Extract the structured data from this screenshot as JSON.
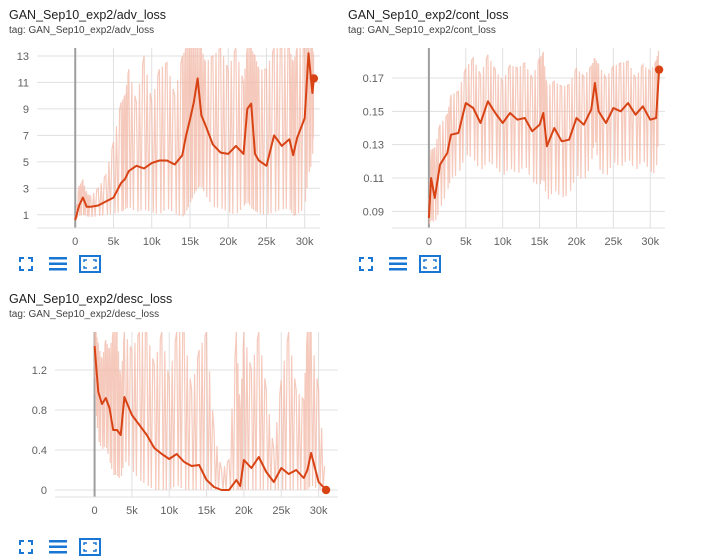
{
  "charts": [
    {
      "title": "GAN_Sep10_exp2/adv_loss",
      "tag": "tag: GAN_Sep10_exp2/adv_loss"
    },
    {
      "title": "GAN_Sep10_exp2/cont_loss",
      "tag": "tag: GAN_Sep10_exp2/cont_loss"
    },
    {
      "title": "GAN_Sep10_exp2/desc_loss",
      "tag": "tag: GAN_Sep10_exp2/desc_loss"
    }
  ],
  "toolbar_icons": [
    "fullscreen-icon",
    "data-download-icon",
    "fit-domain-icon"
  ],
  "colors": {
    "line": "#d84315",
    "raw": "#f2b7a5",
    "axis": "#9e9e9e",
    "grid": "#e0e0e0",
    "tool": "#1976d2"
  },
  "chart_data": [
    {
      "type": "line",
      "title": "GAN_Sep10_exp2/adv_loss",
      "xlim": [
        -5000,
        32000
      ],
      "ylim": [
        0,
        13.6
      ],
      "x_ticks": [
        0,
        5000,
        10000,
        15000,
        20000,
        25000,
        30000
      ],
      "x_tick_labels": [
        "0",
        "5k",
        "10k",
        "15k",
        "20k",
        "25k",
        "30k"
      ],
      "y_ticks": [
        1,
        3,
        5,
        7,
        9,
        11,
        13
      ],
      "y_tick_labels": [
        "1",
        "3",
        "5",
        "7",
        "9",
        "11",
        "13"
      ],
      "grid": true,
      "series": [
        {
          "x": [
            0,
            500,
            1000,
            1500,
            2000,
            3000,
            4000,
            5000,
            6000,
            6500,
            7000,
            8000,
            9000,
            10000,
            11000,
            12000,
            13000,
            14000,
            14500,
            15000,
            15500,
            16000,
            16500,
            17000,
            18000,
            19000,
            20000,
            21000,
            22000,
            22500,
            23000,
            23500,
            24000,
            25000,
            26000,
            27000,
            28000,
            28500,
            29000,
            30000,
            30500,
            31000,
            31200
          ],
          "y": [
            0.6,
            1.7,
            2.3,
            1.6,
            1.6,
            1.7,
            2.0,
            2.3,
            3.4,
            3.7,
            4.3,
            4.7,
            4.5,
            4.9,
            5.1,
            5.1,
            4.8,
            5.5,
            7.0,
            8.2,
            9.5,
            11.3,
            8.5,
            7.8,
            6.3,
            5.7,
            5.6,
            6.2,
            5.6,
            9.0,
            9.4,
            5.6,
            5.1,
            4.7,
            7.0,
            6.2,
            6.7,
            5.5,
            6.8,
            8.3,
            13.2,
            10.2,
            11.3
          ],
          "y_high": [
            0.9,
            3.2,
            3.6,
            2.6,
            2.4,
            3.0,
            4.0,
            6.5,
            9.5,
            10.0,
            12.0,
            9.5,
            13.0,
            9.5,
            12.0,
            12.5,
            10.0,
            13.0,
            13.6,
            13.6,
            13.6,
            13.6,
            13.6,
            12.5,
            13.0,
            13.6,
            12.0,
            13.6,
            11.0,
            13.6,
            13.6,
            13.0,
            12.0,
            12.0,
            13.6,
            13.6,
            13.6,
            12.5,
            13.6,
            13.6,
            13.6,
            13.6,
            13.0
          ],
          "y_low": [
            0.6,
            0.9,
            1.0,
            0.9,
            0.8,
            0.9,
            1.0,
            1.1,
            1.2,
            1.4,
            1.6,
            1.2,
            1.4,
            1.2,
            1.0,
            1.5,
            1.1,
            0.8,
            1.2,
            1.8,
            2.5,
            3.0,
            3.2,
            2.5,
            1.6,
            1.5,
            1.2,
            1.0,
            1.6,
            2.0,
            1.5,
            1.3,
            1.1,
            1.0,
            1.2,
            1.4,
            1.5,
            0.9,
            1.0,
            1.5,
            4.0,
            5.0,
            8.0
          ]
        }
      ]
    },
    {
      "type": "line",
      "title": "GAN_Sep10_exp2/cont_loss",
      "xlim": [
        -5000,
        32000
      ],
      "ylim": [
        0.08,
        0.188
      ],
      "x_ticks": [
        0,
        5000,
        10000,
        15000,
        20000,
        25000,
        30000
      ],
      "x_tick_labels": [
        "0",
        "5k",
        "10k",
        "15k",
        "20k",
        "25k",
        "30k"
      ],
      "y_ticks": [
        0.09,
        0.11,
        0.13,
        0.15,
        0.17
      ],
      "y_tick_labels": [
        "0.09",
        "0.11",
        "0.13",
        "0.15",
        "0.17"
      ],
      "grid": true,
      "series": [
        {
          "x": [
            0,
            300,
            800,
            1500,
            2500,
            3000,
            4000,
            5000,
            6000,
            7000,
            8000,
            9000,
            10000,
            11000,
            12000,
            13000,
            14000,
            15000,
            15500,
            16000,
            17000,
            18000,
            19000,
            20000,
            21000,
            22000,
            22500,
            23000,
            24000,
            25000,
            26000,
            27000,
            28000,
            29000,
            30000,
            30800,
            31200
          ],
          "y": [
            0.086,
            0.11,
            0.098,
            0.118,
            0.125,
            0.136,
            0.137,
            0.155,
            0.152,
            0.143,
            0.156,
            0.149,
            0.143,
            0.149,
            0.145,
            0.146,
            0.138,
            0.142,
            0.149,
            0.129,
            0.14,
            0.132,
            0.133,
            0.146,
            0.142,
            0.151,
            0.167,
            0.15,
            0.143,
            0.152,
            0.15,
            0.155,
            0.148,
            0.153,
            0.145,
            0.146,
            0.175
          ],
          "y_high": [
            0.098,
            0.127,
            0.128,
            0.142,
            0.148,
            0.16,
            0.162,
            0.176,
            0.182,
            0.172,
            0.184,
            0.175,
            0.168,
            0.178,
            0.176,
            0.179,
            0.17,
            0.182,
            0.185,
            0.165,
            0.168,
            0.165,
            0.166,
            0.176,
            0.171,
            0.177,
            0.182,
            0.178,
            0.17,
            0.177,
            0.179,
            0.18,
            0.17,
            0.178,
            0.174,
            0.18,
            0.188
          ],
          "y_low": [
            0.082,
            0.085,
            0.083,
            0.091,
            0.102,
            0.11,
            0.112,
            0.124,
            0.122,
            0.114,
            0.12,
            0.117,
            0.111,
            0.116,
            0.112,
            0.118,
            0.108,
            0.105,
            0.111,
            0.096,
            0.103,
            0.098,
            0.1,
            0.112,
            0.108,
            0.118,
            0.135,
            0.116,
            0.11,
            0.12,
            0.116,
            0.122,
            0.114,
            0.121,
            0.114,
            0.112,
            0.14
          ]
        }
      ]
    },
    {
      "type": "line",
      "title": "GAN_Sep10_exp2/desc_loss",
      "xlim": [
        -5300,
        32600
      ],
      "ylim": [
        -0.07,
        1.58
      ],
      "x_ticks": [
        0,
        5000,
        10000,
        15000,
        20000,
        25000,
        30000
      ],
      "x_tick_labels": [
        "0",
        "5k",
        "10k",
        "15k",
        "20k",
        "25k",
        "30k"
      ],
      "y_ticks": [
        0,
        0.4,
        0.8,
        1.2
      ],
      "y_tick_labels": [
        "0",
        "0.4",
        "0.8",
        "1.2"
      ],
      "grid": true,
      "series": [
        {
          "x": [
            0,
            200,
            500,
            1000,
            1500,
            2000,
            2500,
            3000,
            3500,
            4000,
            5000,
            6000,
            7000,
            8000,
            9000,
            10000,
            11000,
            12000,
            13000,
            14000,
            15000,
            16000,
            17000,
            18000,
            19000,
            19500,
            20000,
            21000,
            22000,
            23000,
            24000,
            25000,
            26000,
            27000,
            28000,
            28500,
            29000,
            30000,
            31000
          ],
          "y": [
            1.44,
            1.25,
            0.98,
            0.86,
            0.92,
            0.82,
            0.6,
            0.6,
            0.55,
            0.93,
            0.75,
            0.65,
            0.55,
            0.42,
            0.36,
            0.31,
            0.36,
            0.28,
            0.24,
            0.25,
            0.1,
            0.03,
            0.0,
            0.0,
            0.1,
            0.04,
            0.3,
            0.22,
            0.33,
            0.18,
            0.08,
            0.22,
            0.16,
            0.2,
            0.12,
            0.2,
            0.37,
            0.08,
            0.0
          ],
          "y_high": [
            1.58,
            1.58,
            1.45,
            1.3,
            1.5,
            1.4,
            1.58,
            1.58,
            1.1,
            1.58,
            1.4,
            1.58,
            1.58,
            1.25,
            1.58,
            1.1,
            1.58,
            1.58,
            1.0,
            1.4,
            1.58,
            0.6,
            0.2,
            0.3,
            1.58,
            0.8,
            1.58,
            1.2,
            1.58,
            1.0,
            0.4,
            1.1,
            1.58,
            1.0,
            0.9,
            1.58,
            1.58,
            1.0,
            0.05
          ],
          "y_low": [
            1.2,
            0.8,
            0.5,
            0.4,
            0.45,
            0.3,
            0.15,
            0.15,
            0.1,
            0.3,
            0.2,
            0.1,
            0.05,
            0.0,
            0.0,
            0.0,
            0.05,
            0.0,
            0.0,
            0.0,
            0.0,
            0.0,
            0.0,
            0.0,
            0.0,
            0.0,
            0.0,
            0.0,
            0.0,
            0.0,
            0.0,
            0.0,
            0.0,
            0.0,
            0.0,
            0.0,
            0.05,
            0.0,
            0.0
          ]
        }
      ]
    }
  ]
}
